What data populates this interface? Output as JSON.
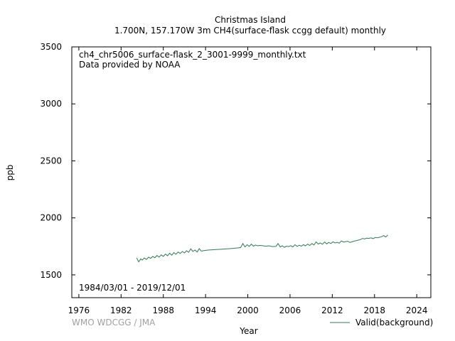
{
  "chart_data": {
    "type": "line",
    "title_line1": "Christmas Island",
    "title_line2": "1.700N, 157.170W 3m    CH4(surface-flask ccgg default) monthly",
    "annotation_file": "ch4_chr5006_surface-flask_2_3001-9999_monthly.txt",
    "annotation_provider": "Data provided by NOAA",
    "date_range": "1984/03/01 - 2019/12/01",
    "credit": "WMO WDCGG / JMA",
    "xlabel": "Year",
    "ylabel": "ppb",
    "xlim": [
      1975,
      2026
    ],
    "ylim": [
      1300,
      3500
    ],
    "xticks": [
      1976,
      1982,
      1988,
      1994,
      2000,
      2006,
      2012,
      2018,
      2024
    ],
    "yticks": [
      1500,
      2000,
      2500,
      3000,
      3500
    ],
    "grid": false,
    "legend_position": "bottom-right",
    "series": [
      {
        "name": "Valid(background)",
        "color": "#2e7d52",
        "x": [
          1984.2,
          1984.5,
          1984.8,
          1985.0,
          1985.3,
          1985.6,
          1985.9,
          1986.2,
          1986.5,
          1986.8,
          1987.1,
          1987.4,
          1987.7,
          1988.0,
          1988.3,
          1988.6,
          1988.9,
          1989.2,
          1989.5,
          1989.8,
          1990.1,
          1990.4,
          1990.7,
          1991.0,
          1991.3,
          1991.6,
          1991.9,
          1992.2,
          1992.5,
          1992.8,
          1993.1,
          1993.4,
          1993.7,
          1994.0,
          1994.5,
          1995.0,
          1995.5,
          1996.0,
          1996.5,
          1997.0,
          1997.5,
          1998.0,
          1998.5,
          1999.0,
          1999.3,
          1999.6,
          1999.9,
          2000.2,
          2000.5,
          2000.8,
          2001.1,
          2001.4,
          2001.7,
          2002.0,
          2002.5,
          2003.0,
          2003.5,
          2004.0,
          2004.3,
          2004.6,
          2004.9,
          2005.2,
          2005.5,
          2005.8,
          2006.1,
          2006.4,
          2006.7,
          2007.0,
          2007.3,
          2007.6,
          2007.9,
          2008.2,
          2008.5,
          2008.8,
          2009.1,
          2009.4,
          2009.7,
          2010.0,
          2010.3,
          2010.6,
          2010.9,
          2011.2,
          2011.5,
          2011.8,
          2012.1,
          2012.4,
          2012.7,
          2013.0,
          2013.3,
          2013.6,
          2013.9,
          2014.2,
          2014.5,
          2014.8,
          2015.1,
          2015.4,
          2015.7,
          2016.0,
          2016.3,
          2016.6,
          2016.9,
          2017.2,
          2017.5,
          2017.8,
          2018.1,
          2018.4,
          2018.7,
          2019.0,
          2019.3,
          2019.6,
          2019.9
        ],
        "y": [
          1650,
          1615,
          1640,
          1630,
          1648,
          1635,
          1655,
          1645,
          1662,
          1650,
          1670,
          1655,
          1676,
          1662,
          1682,
          1668,
          1690,
          1672,
          1695,
          1680,
          1700,
          1688,
          1705,
          1692,
          1712,
          1698,
          1728,
          1705,
          1718,
          1700,
          1730,
          1708,
          1712,
          1715,
          1718,
          1720,
          1722,
          1724,
          1726,
          1728,
          1730,
          1733,
          1736,
          1740,
          1775,
          1745,
          1765,
          1750,
          1770,
          1752,
          1762,
          1755,
          1758,
          1756,
          1752,
          1755,
          1748,
          1750,
          1775,
          1745,
          1755,
          1742,
          1752,
          1748,
          1756,
          1745,
          1765,
          1750,
          1760,
          1752,
          1765,
          1755,
          1770,
          1758,
          1775,
          1762,
          1790,
          1770,
          1780,
          1768,
          1788,
          1772,
          1785,
          1775,
          1790,
          1780,
          1785,
          1778,
          1798,
          1788,
          1792,
          1795,
          1785,
          1790,
          1796,
          1800,
          1805,
          1810,
          1820,
          1815,
          1822,
          1820,
          1825,
          1818,
          1828,
          1825,
          1830,
          1835,
          1845,
          1832,
          1850
        ]
      }
    ]
  }
}
